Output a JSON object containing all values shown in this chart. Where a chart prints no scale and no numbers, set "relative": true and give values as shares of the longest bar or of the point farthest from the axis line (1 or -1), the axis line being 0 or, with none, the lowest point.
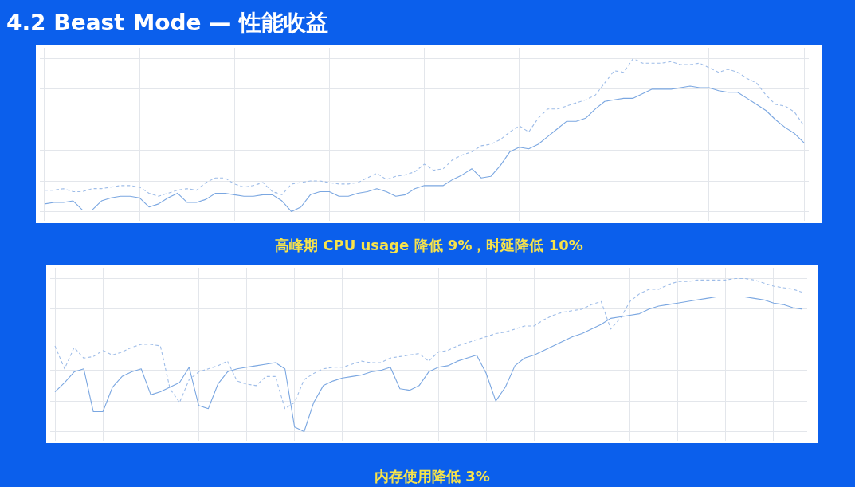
{
  "chart_data": [
    {
      "type": "line",
      "title": "4.2 Beast Mode — 性能收益",
      "annotations": [
        "高峰期 CPU usage 降低 9%，时延降低 10%"
      ],
      "relative": true,
      "grid": true,
      "categories": [
        null,
        null,
        null,
        null,
        null,
        null,
        null,
        null,
        null,
        null,
        null,
        null,
        null,
        null,
        null,
        null,
        null,
        null,
        null,
        null,
        null,
        null,
        null,
        null,
        null,
        null,
        null,
        null,
        null,
        null,
        null,
        null,
        null,
        null,
        null,
        null,
        null,
        null,
        null,
        null,
        null,
        null,
        null,
        null,
        null,
        null,
        null,
        null,
        null,
        null,
        null,
        null,
        null,
        null,
        null,
        null,
        null,
        null,
        null,
        null,
        null,
        null,
        null,
        null,
        null,
        null,
        null,
        null,
        null,
        null,
        null,
        null,
        null,
        null,
        null,
        null,
        null,
        null,
        null,
        null,
        null
      ],
      "series": [
        {
          "color": "#9fbde8",
          "line_style": "dashed",
          "values": [
            0.14,
            0.14,
            0.15,
            0.13,
            0.13,
            0.15,
            0.15,
            0.16,
            0.17,
            0.17,
            0.16,
            0.12,
            0.1,
            0.12,
            0.14,
            0.15,
            0.14,
            0.19,
            0.22,
            0.22,
            0.18,
            0.16,
            0.17,
            0.19,
            0.13,
            0.11,
            0.18,
            0.19,
            0.2,
            0.2,
            0.19,
            0.18,
            0.18,
            0.19,
            0.22,
            0.25,
            0.21,
            0.23,
            0.24,
            0.26,
            0.31,
            0.27,
            0.28,
            0.34,
            0.37,
            0.39,
            0.43,
            0.44,
            0.47,
            0.52,
            0.56,
            0.52,
            0.61,
            0.67,
            0.67,
            0.69,
            0.71,
            0.73,
            0.76,
            0.84,
            0.92,
            0.91,
            1,
            0.97,
            0.97,
            0.97,
            0.98,
            0.96,
            0.96,
            0.97,
            0.94,
            0.91,
            0.93,
            0.91,
            0.87,
            0.84,
            0.76,
            0.7,
            0.69,
            0.65,
            0.56
          ]
        },
        {
          "color": "#7ba7e1",
          "line_style": "solid",
          "values": [
            0.05,
            0.06,
            0.06,
            0.07,
            0.01,
            0.01,
            0.07,
            0.09,
            0.1,
            0.1,
            0.09,
            0.03,
            0.05,
            0.09,
            0.12,
            0.06,
            0.06,
            0.08,
            0.12,
            0.12,
            0.11,
            0.1,
            0.1,
            0.11,
            0.11,
            0.07,
            0,
            0.03,
            0.11,
            0.13,
            0.13,
            0.1,
            0.1,
            0.12,
            0.13,
            0.15,
            0.13,
            0.1,
            0.11,
            0.15,
            0.17,
            0.17,
            0.17,
            0.21,
            0.24,
            0.28,
            0.22,
            0.23,
            0.3,
            0.39,
            0.42,
            0.41,
            0.44,
            0.49,
            0.54,
            0.59,
            0.59,
            0.61,
            0.67,
            0.72,
            0.73,
            0.74,
            0.74,
            0.77,
            0.8,
            0.8,
            0.8,
            0.81,
            0.82,
            0.81,
            0.81,
            0.79,
            0.78,
            0.78,
            0.74,
            0.7,
            0.66,
            0.6,
            0.55,
            0.51,
            0.45
          ]
        }
      ]
    },
    {
      "type": "line",
      "annotations": [
        "内存使用降低 3%"
      ],
      "relative": true,
      "grid": true,
      "categories": [
        null,
        null,
        null,
        null,
        null,
        null,
        null,
        null,
        null,
        null,
        null,
        null,
        null,
        null,
        null,
        null,
        null,
        null,
        null,
        null,
        null,
        null,
        null,
        null,
        null,
        null,
        null,
        null,
        null,
        null,
        null,
        null,
        null,
        null,
        null,
        null,
        null,
        null,
        null,
        null,
        null,
        null,
        null,
        null,
        null,
        null,
        null,
        null,
        null,
        null,
        null,
        null,
        null,
        null,
        null,
        null,
        null,
        null,
        null,
        null,
        null,
        null,
        null,
        null,
        null,
        null,
        null,
        null,
        null,
        null,
        null,
        null,
        null,
        null,
        null,
        null,
        null,
        null,
        null
      ],
      "series": [
        {
          "color": "#9fbde8",
          "line_style": "dashed",
          "values": [
            0.56,
            0.41,
            0.55,
            0.48,
            0.49,
            0.53,
            0.5,
            0.52,
            0.55,
            0.57,
            0.57,
            0.56,
            0.28,
            0.19,
            0.34,
            0.39,
            0.41,
            0.43,
            0.46,
            0.33,
            0.31,
            0.3,
            0.36,
            0.36,
            0.15,
            0.19,
            0.34,
            0.38,
            0.41,
            0.42,
            0.42,
            0.44,
            0.46,
            0.45,
            0.45,
            0.48,
            0.49,
            0.5,
            0.51,
            0.46,
            0.52,
            0.53,
            0.56,
            0.58,
            0.6,
            0.62,
            0.64,
            0.65,
            0.67,
            0.69,
            0.69,
            0.73,
            0.76,
            0.78,
            0.79,
            0.8,
            0.83,
            0.85,
            0.67,
            0.74,
            0.85,
            0.9,
            0.93,
            0.93,
            0.96,
            0.98,
            0.98,
            0.99,
            0.99,
            0.99,
            0.99,
            1,
            1,
            0.99,
            0.97,
            0.95,
            0.94,
            0.93,
            0.91
          ]
        },
        {
          "color": "#7ba7e1",
          "line_style": "solid",
          "values": [
            0.26,
            0.32,
            0.39,
            0.41,
            0.13,
            0.13,
            0.29,
            0.36,
            0.39,
            0.41,
            0.24,
            0.26,
            0.29,
            0.32,
            0.42,
            0.17,
            0.15,
            0.31,
            0.39,
            0.41,
            0.42,
            0.43,
            0.44,
            0.45,
            0.41,
            0.03,
            0,
            0.19,
            0.3,
            0.33,
            0.35,
            0.36,
            0.37,
            0.39,
            0.4,
            0.42,
            0.28,
            0.27,
            0.3,
            0.39,
            0.42,
            0.43,
            0.46,
            0.48,
            0.5,
            0.38,
            0.2,
            0.29,
            0.43,
            0.48,
            0.5,
            0.53,
            0.56,
            0.59,
            0.62,
            0.64,
            0.67,
            0.7,
            0.74,
            0.75,
            0.76,
            0.77,
            0.8,
            0.82,
            0.83,
            0.84,
            0.85,
            0.86,
            0.87,
            0.88,
            0.88,
            0.88,
            0.88,
            0.87,
            0.86,
            0.84,
            0.83,
            0.81,
            0.8
          ]
        }
      ]
    }
  ]
}
